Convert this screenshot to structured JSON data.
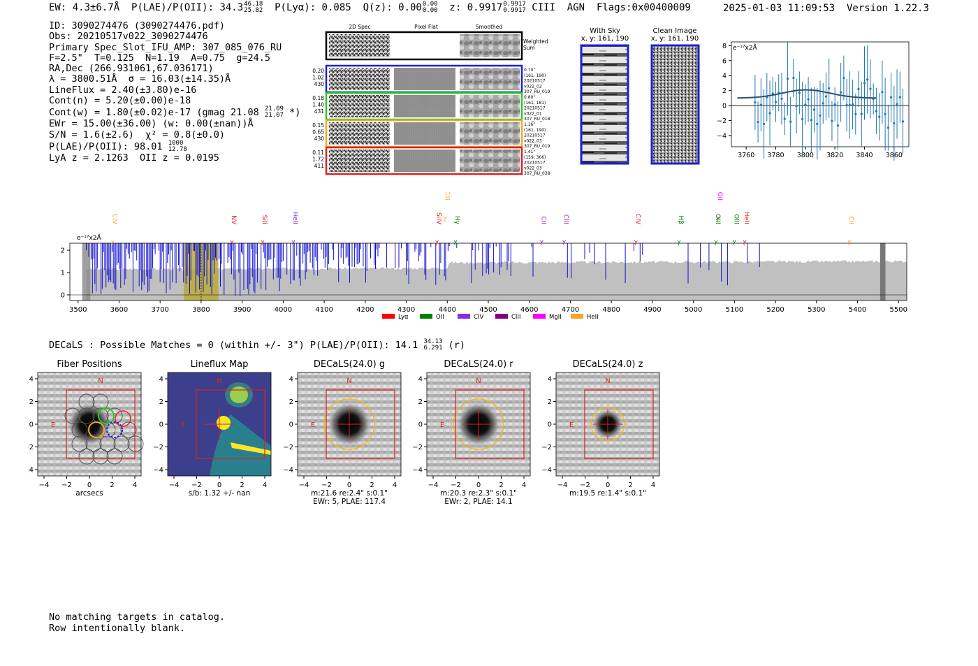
{
  "header": {
    "ew": "EW: 4.3±6.7Å",
    "plae": "P(LAE)/P(OII): 34.3",
    "plae_hi": "46.18",
    "plae_lo": "25.82",
    "plya": "P(Lyα): 0.085",
    "qz": "Q(z): 0.00",
    "qz_hi": "0.00",
    "qz_lo": "0.00",
    "z": "z: 0.9917",
    "z_hi": "0.9917",
    "z_lo": "0.9917",
    "line": "CIII",
    "type": "AGN",
    "flags": "Flags:0x00400009",
    "timestamp": "2025-01-03 11:09:53",
    "version": "Version 1.22.3"
  },
  "info": {
    "id": "ID: 3090274476 (3090274476.pdf)",
    "obs": "Obs: 20210517v022_3090274476",
    "primary": "Primary Spec_Slot_IFU_AMP: 307_085_076_RU",
    "params": "F=2.5\"  T=0.125  N=1.19  A=0.75  g=24.5",
    "radec": "RA,Dec (266.931061,67.036171)",
    "lambda": "λ = 3800.51Å  σ = 16.03(±14.35)Å",
    "lineflux": "LineFlux = 2.40(±3.80)e-16",
    "contn": "Cont(n) = 5.20(±0.00)e-18",
    "contw": "Cont(w) = 1.80(±0.02)e-17 (gmag 21.08",
    "contw_hi": "21.09",
    "contw_lo": "21.07",
    "contw_end": " *)",
    "ewr": "EWr = 15.00(±36.00) (w: 0.00(±nan))Å",
    "sn": "S/N = 1.6(±2.6)  χ² = 0.8(±0.0)",
    "plae": "P(LAE)/P(OII): 98.01",
    "plae_hi": "1000",
    "plae_lo": "12.78",
    "lyaz": "LyA z = 2.1263  OII z = 0.0195"
  },
  "cutouts": {
    "col_headers": [
      "2D Spec",
      "Pixel Flat",
      "Smoothed"
    ],
    "weighted_sum": "Weighted\nSum",
    "rows": [
      {
        "left": [
          "0.20",
          "1.02",
          "430"
        ],
        "right": [
          "0.70\"",
          "(161, 190)",
          "20210517",
          "v022_02",
          "307_RU_019"
        ],
        "color": "#1f1fd0"
      },
      {
        "left": [
          "0.18",
          "1.40",
          "431"
        ],
        "right": [
          "0.80\"",
          "(161, 181)",
          "20210517",
          "v022_01",
          "307_RU_018"
        ],
        "color": "#22cc22"
      },
      {
        "left": [
          "0.15",
          "0.65",
          "430"
        ],
        "right": [
          "1.16\"",
          "(161, 190)",
          "20210517",
          "v022_03",
          "307_RU_019"
        ],
        "color": "#f5a623"
      },
      {
        "left": [
          "0.11",
          "1.72",
          "411"
        ],
        "right": [
          "1.41\"",
          "(159, 366)",
          "20210517",
          "v022_03",
          "307_RU_038"
        ],
        "color": "#e02020"
      }
    ]
  },
  "sky_panels": {
    "with_sky_title": "With Sky",
    "with_sky_xy": "x, y: 161, 190",
    "clean_title": "Clean Image",
    "clean_xy": "x, y: 161, 190"
  },
  "line_fit": {
    "unit": "e⁻¹⁷x2Å",
    "xlim": [
      3750,
      3870
    ],
    "ylim": [
      -5.5,
      8.5
    ],
    "xticks": [
      "3760",
      "3780",
      "3800",
      "3820",
      "3840",
      "3860"
    ],
    "yticks": [
      "8",
      "6",
      "4",
      "2",
      "0",
      "−2",
      "−4"
    ]
  },
  "spectrum": {
    "unit": "e⁻¹⁷x2Å",
    "xticks": [
      "3500",
      "3600",
      "3700",
      "3800",
      "3900",
      "4000",
      "4100",
      "4200",
      "4300",
      "4400",
      "4500",
      "4600",
      "4700",
      "4800",
      "4900",
      "5000",
      "5100",
      "5200",
      "5300",
      "5400",
      "5500"
    ],
    "yticks": [
      "2",
      "1",
      "0"
    ],
    "lines": [
      {
        "label": "CIV",
        "wave": 3585,
        "color": "#f5a623",
        "high": false
      },
      {
        "label": "NV",
        "wave": 3875,
        "color": "#e02020",
        "high": false
      },
      {
        "label": "SiII",
        "wave": 3950,
        "color": "#e02020",
        "high": false
      },
      {
        "label": "HeII",
        "wave": 4025,
        "color": "#8a2be2",
        "high": false
      },
      {
        "label": "SiIV",
        "wave": 4375,
        "color": "#e02020",
        "high": false
      },
      {
        "label": "CIII",
        "wave": 4395,
        "color": "#f5a623",
        "high": true
      },
      {
        "label": "Hγ",
        "wave": 4420,
        "color": "#008000",
        "high": false
      },
      {
        "label": "CII",
        "wave": 4630,
        "color": "#8a2be2",
        "high": false
      },
      {
        "label": "CIII",
        "wave": 4685,
        "color": "#8a2be2",
        "high": false
      },
      {
        "label": "CIV",
        "wave": 4860,
        "color": "#e02020",
        "high": false
      },
      {
        "label": "Hβ",
        "wave": 4965,
        "color": "#008000",
        "high": false
      },
      {
        "label": "OII",
        "wave": 5060,
        "color": "#ff00ff",
        "high": true
      },
      {
        "label": "OIII",
        "wave": 5055,
        "color": "#008000",
        "high": false
      },
      {
        "label": "OIII",
        "wave": 5100,
        "color": "#008000",
        "high": false
      },
      {
        "label": "HeII",
        "wave": 5125,
        "color": "#e02020",
        "high": false
      },
      {
        "label": "CII",
        "wave": 5380,
        "color": "#f5a623",
        "high": false
      }
    ],
    "legend": [
      {
        "label": "Lyα",
        "color": "#ff0000"
      },
      {
        "label": "OII",
        "color": "#008000"
      },
      {
        "label": "CIV",
        "color": "#8a2be2"
      },
      {
        "label": "CIII",
        "color": "#800080"
      },
      {
        "label": "MgII",
        "color": "#ff00ff"
      },
      {
        "label": "HeII",
        "color": "#f5a623"
      }
    ]
  },
  "decals": {
    "summary": "DECaLS : Possible Matches = 0 (within +/- 3\")  P(LAE)/P(OII): 14.1",
    "summary_hi": "34.13",
    "summary_lo": "6.291",
    "summary_end": " (r)",
    "panels": [
      {
        "title": "Fiber Positions",
        "cap1": "arcsecs",
        "cap2": ""
      },
      {
        "title": "Lineflux Map",
        "cap1": "s/b: 1.32 +/- nan",
        "cap2": ""
      },
      {
        "title": "DECaLS(24.0) g",
        "cap1": "m:21.6  re:2.4\"  s:0.1\"",
        "cap2": "EWr: 5, PLAE: 117.4"
      },
      {
        "title": "DECaLS(24.0) r",
        "cap1": "m:20.3  re:2.3\"  s:0.1\"",
        "cap2": "EWr: 2, PLAE: 14.1"
      },
      {
        "title": "DECaLS(24.0) z",
        "cap1": "m:19.5  re:1.4\"  s:0.1\"",
        "cap2": ""
      }
    ],
    "ticks": [
      "4",
      "2",
      "0",
      "−2",
      "−4"
    ],
    "xticks": [
      "−4",
      "−2",
      "0",
      "2",
      "4"
    ],
    "north": "N",
    "east": "E"
  },
  "footer": {
    "line1": "No matching targets in catalog.",
    "line2": "Row intentionally blank."
  }
}
